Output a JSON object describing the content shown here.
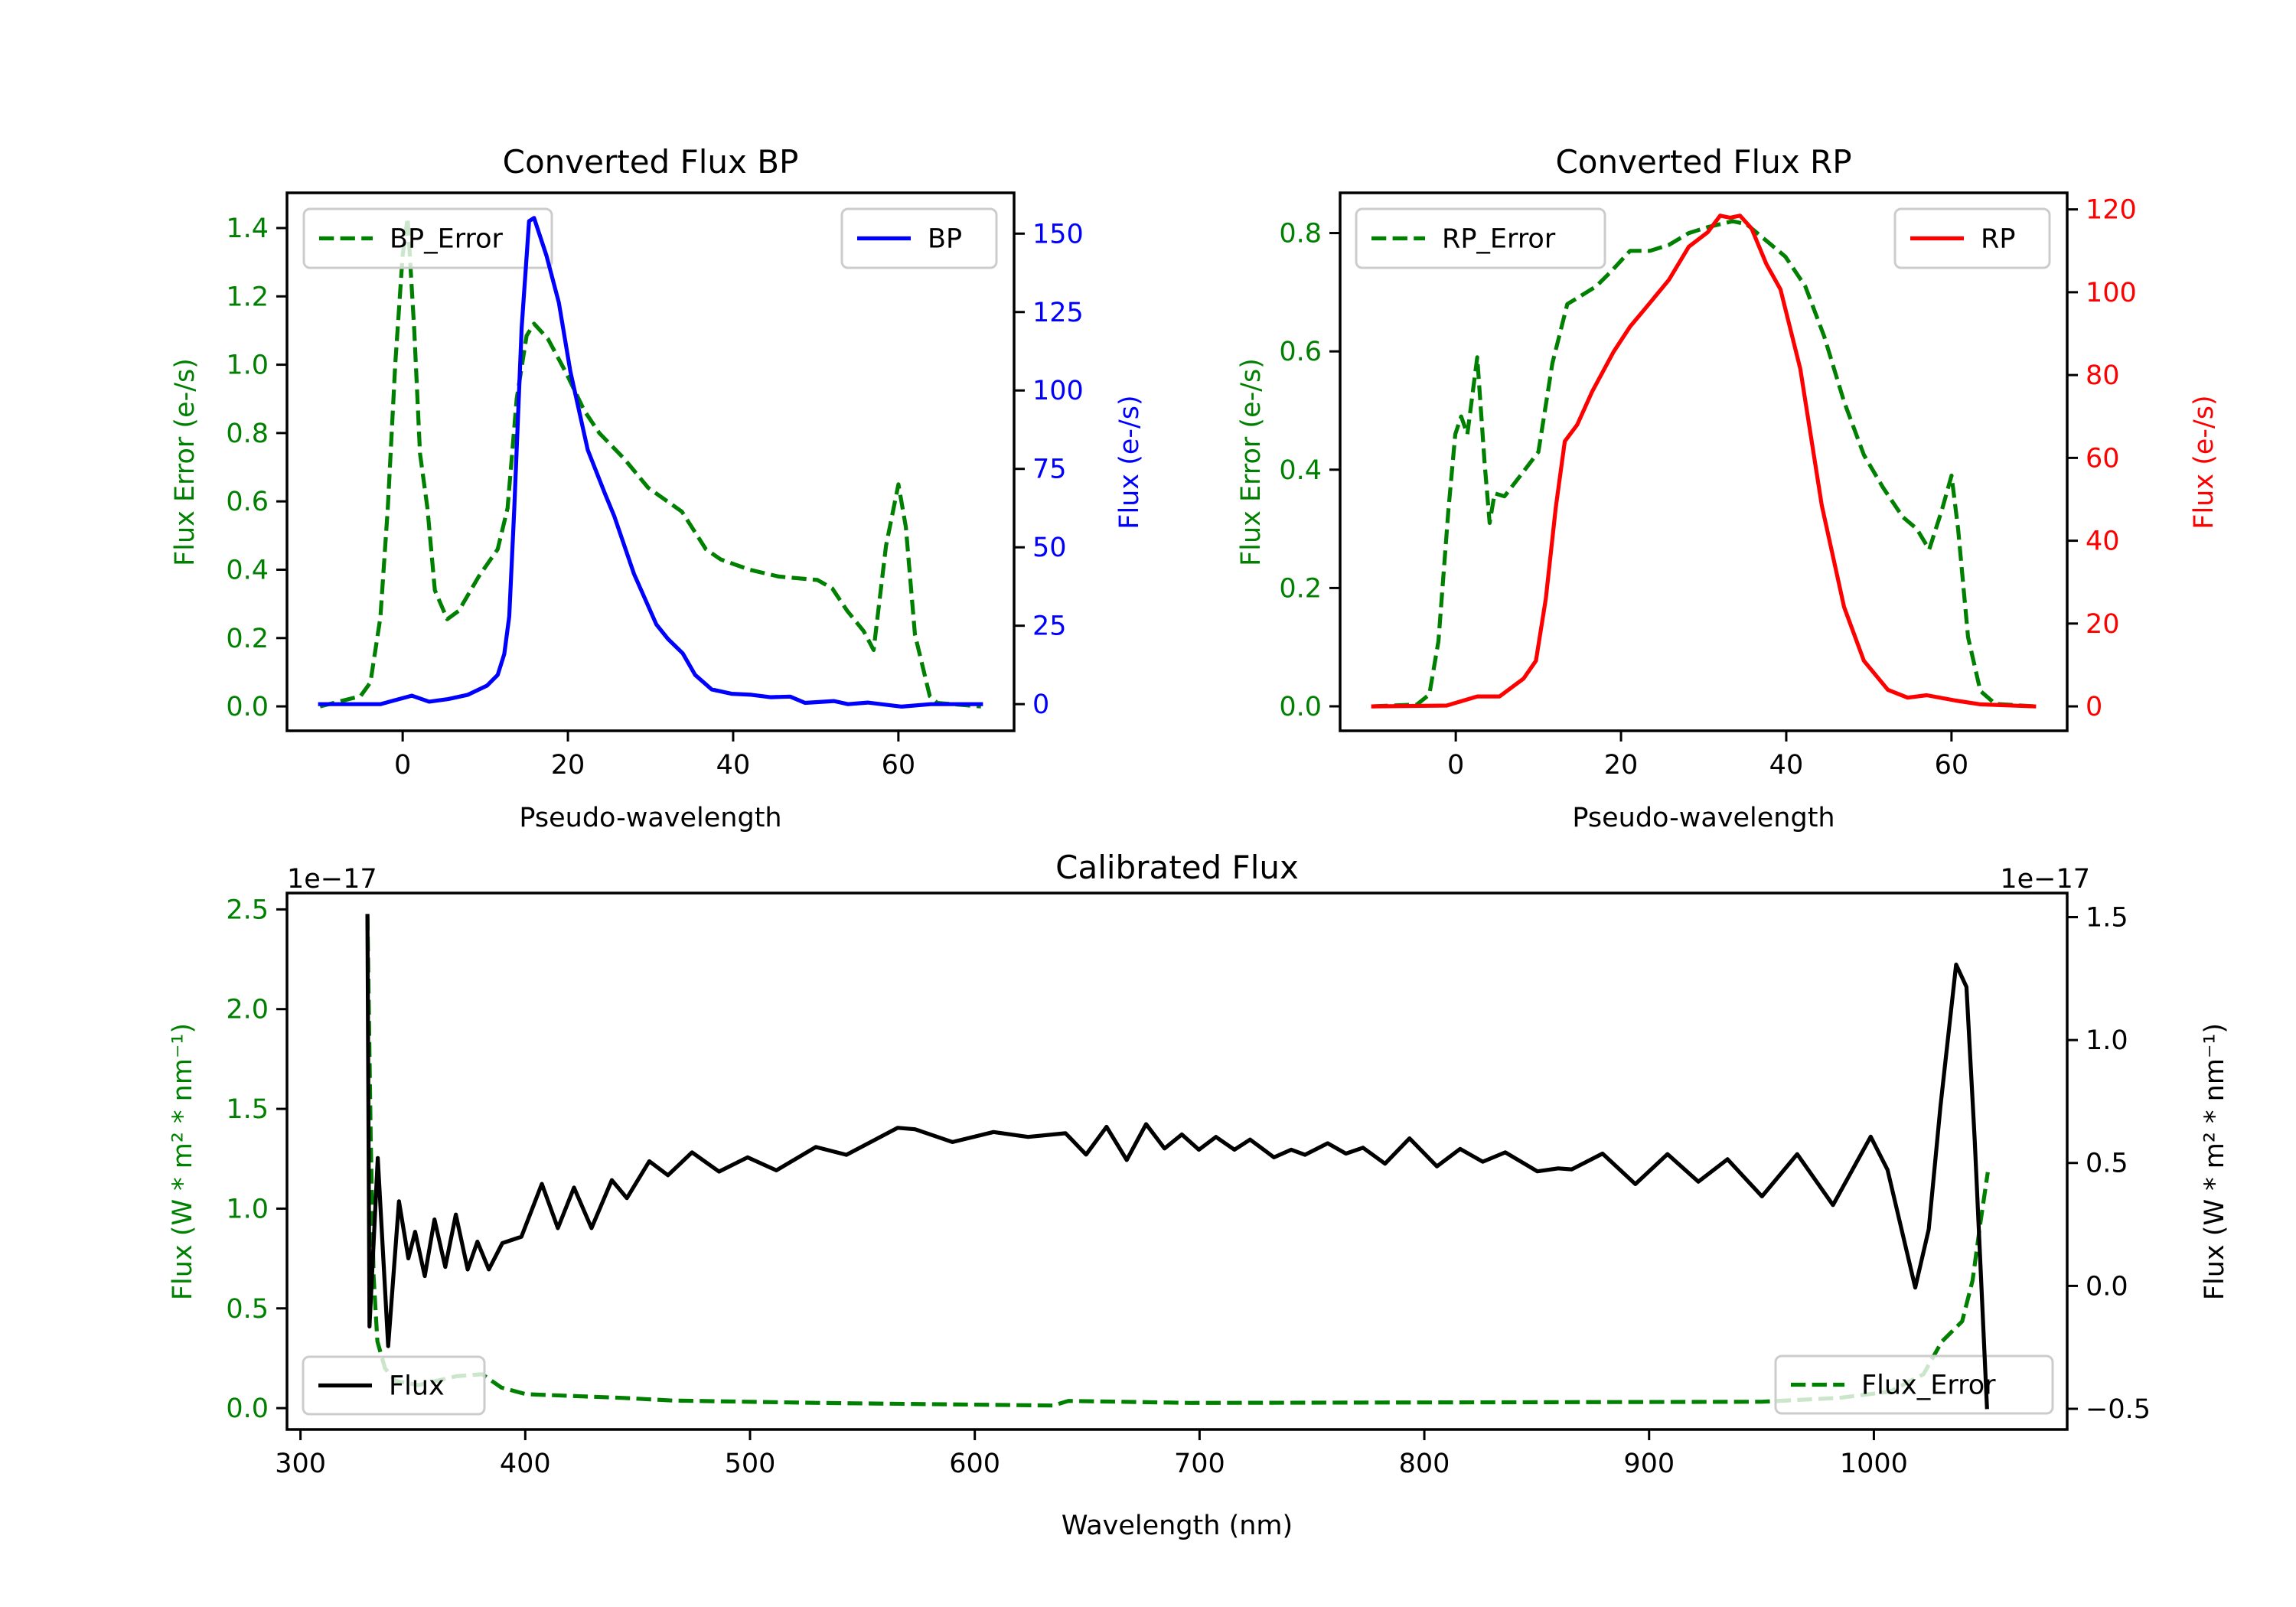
{
  "colors": {
    "error": "#008000",
    "bp": "#0000ff",
    "rp": "#ff0000",
    "flux": "#000000",
    "axes": "#000000",
    "legend_border": "#cccccc"
  },
  "chart_data": [
    {
      "id": "bp",
      "type": "line",
      "title": "Converted Flux BP",
      "xlabel": "Pseudo-wavelength",
      "ylabel": "Flux Error (e-/s)",
      "ylabel_right": "Flux (e-/s)",
      "xlim": [
        -14,
        74
      ],
      "ylim": [
        -0.0715,
        1.503
      ],
      "ylim_right": [
        -8.5,
        163
      ],
      "grid": false,
      "xticks": [
        0,
        20,
        40,
        60
      ],
      "xtick_labels": [
        "0",
        "20",
        "40",
        "60"
      ],
      "yticks": [
        0.0,
        0.2,
        0.4,
        0.6,
        0.8,
        1.0,
        1.2,
        1.4
      ],
      "ytick_labels": [
        "0.0",
        "0.2",
        "0.4",
        "0.6",
        "0.8",
        "1.0",
        "1.2",
        "1.4"
      ],
      "yticks_right": [
        0,
        25,
        50,
        75,
        100,
        125,
        150
      ],
      "ytick_labels_right": [
        "0",
        "25",
        "50",
        "75",
        "100",
        "125",
        "150"
      ],
      "legend_left": {
        "label": "BP_Error",
        "placement": "upper-left"
      },
      "legend_right": {
        "label": "BP",
        "placement": "upper-right"
      },
      "series": [
        {
          "name": "BP_Error",
          "axis": "left",
          "style": "dashed",
          "color_key": "error",
          "x": [
            -10,
            -5.1,
            -3.9,
            -2.7,
            -1.8,
            -0.9,
            0,
            0.6,
            1.4,
            2.1,
            3.0,
            3.9,
            5.4,
            6.8,
            9.2,
            11.5,
            12.7,
            13.8,
            15.0,
            15.9,
            17.6,
            19.7,
            22.0,
            23.8,
            26.8,
            29.7,
            33.8,
            36.7,
            38.5,
            42.0,
            45.5,
            50.2,
            52.0,
            53.8,
            55.8,
            57.0,
            58.5,
            60.0,
            60.9,
            62.0,
            63.8,
            64.7,
            70
          ],
          "y": [
            0.0,
            0.03,
            0.07,
            0.26,
            0.58,
            1.0,
            1.32,
            1.43,
            1.1,
            0.74,
            0.58,
            0.34,
            0.255,
            0.28,
            0.38,
            0.46,
            0.58,
            0.9,
            1.085,
            1.12,
            1.075,
            0.98,
            0.865,
            0.8,
            0.725,
            0.64,
            0.57,
            0.46,
            0.43,
            0.4,
            0.38,
            0.37,
            0.345,
            0.28,
            0.22,
            0.165,
            0.47,
            0.65,
            0.525,
            0.21,
            0.03,
            0.01,
            0.0
          ]
        },
        {
          "name": "BP",
          "axis": "right",
          "style": "solid",
          "color_key": "bp",
          "x": [
            -10,
            -2.7,
            1.1,
            3.2,
            5.5,
            7.9,
            10.2,
            11.5,
            12.3,
            12.9,
            13.5,
            14.4,
            15.3,
            15.9,
            17.4,
            18.9,
            20.3,
            22.4,
            24.5,
            25.6,
            28.0,
            30.7,
            32.1,
            33.9,
            35.4,
            37.4,
            39.8,
            42.2,
            44.5,
            46.9,
            48.7,
            52.2,
            53.9,
            56.3,
            60.4,
            63.9,
            70
          ],
          "y": [
            0,
            0,
            2.7,
            0.8,
            1.6,
            3.0,
            5.9,
            9.3,
            16,
            28,
            62,
            120,
            154,
            155,
            143,
            128,
            106,
            81,
            67,
            60,
            41.5,
            25.4,
            20.8,
            16.2,
            9.3,
            4.7,
            3.3,
            3.0,
            2.2,
            2.4,
            0.4,
            1.0,
            0,
            0.5,
            -0.8,
            0,
            0
          ]
        }
      ]
    },
    {
      "id": "rp",
      "type": "line",
      "title": "Converted Flux RP",
      "xlabel": "Pseudo-wavelength",
      "ylabel": "Flux Error (e-/s)",
      "ylabel_right": "Flux (e-/s)",
      "xlim": [
        -14,
        74
      ],
      "ylim": [
        -0.0414,
        0.868
      ],
      "ylim_right": [
        -5.9,
        124
      ],
      "grid": false,
      "xticks": [
        0,
        20,
        40,
        60
      ],
      "xtick_labels": [
        "0",
        "20",
        "40",
        "60"
      ],
      "yticks": [
        0.0,
        0.2,
        0.4,
        0.6,
        0.8
      ],
      "ytick_labels": [
        "0.0",
        "0.2",
        "0.4",
        "0.6",
        "0.8"
      ],
      "yticks_right": [
        0,
        20,
        40,
        60,
        80,
        100,
        120
      ],
      "ytick_labels_right": [
        "0",
        "20",
        "40",
        "60",
        "80",
        "100",
        "120"
      ],
      "legend_left": {
        "label": "RP_Error",
        "placement": "upper-left"
      },
      "legend_right": {
        "label": "RP",
        "placement": "upper-right"
      },
      "series": [
        {
          "name": "RP_Error",
          "axis": "left",
          "style": "dashed",
          "color_key": "error",
          "x": [
            -10,
            -4.7,
            -3.2,
            -2.1,
            -0.9,
            -0.06,
            0.65,
            1.4,
            2.6,
            3.5,
            4.1,
            4.7,
            5.9,
            8.2,
            10.0,
            11.7,
            13.5,
            14.7,
            17.0,
            18.8,
            21.1,
            23.5,
            25.8,
            28.2,
            30.5,
            33.5,
            35.2,
            38.2,
            39.9,
            42.3,
            44.6,
            47.0,
            49.4,
            51.7,
            54.1,
            55.8,
            57.3,
            58.8,
            60.0,
            60.8,
            62.0,
            63.5,
            65.3,
            70
          ],
          "y": [
            0.0,
            0.003,
            0.02,
            0.11,
            0.33,
            0.46,
            0.49,
            0.46,
            0.59,
            0.41,
            0.31,
            0.36,
            0.355,
            0.397,
            0.43,
            0.58,
            0.68,
            0.69,
            0.71,
            0.735,
            0.77,
            0.77,
            0.78,
            0.8,
            0.81,
            0.82,
            0.815,
            0.78,
            0.76,
            0.71,
            0.625,
            0.515,
            0.425,
            0.37,
            0.32,
            0.3,
            0.265,
            0.33,
            0.39,
            0.3,
            0.117,
            0.026,
            0.004,
            0.0
          ]
        },
        {
          "name": "RP",
          "axis": "right",
          "style": "solid",
          "color_key": "rp",
          "x": [
            -10,
            -1.1,
            2.6,
            5.3,
            8.2,
            9.7,
            10.9,
            12.1,
            13.2,
            14.7,
            16.5,
            19.1,
            21.1,
            22.9,
            25.8,
            28.2,
            30.5,
            32.0,
            33.2,
            34.4,
            35.8,
            37.6,
            39.3,
            41.7,
            44.3,
            47.0,
            49.4,
            52.3,
            54.7,
            57.0,
            60.5,
            63.5,
            70
          ],
          "y": [
            0,
            0.2,
            2.4,
            2.4,
            6.7,
            11,
            26,
            48,
            64,
            68,
            76,
            85.6,
            91.7,
            96,
            103,
            111,
            114.5,
            118.5,
            118,
            118.5,
            115.4,
            106.8,
            100.7,
            81.5,
            48.5,
            24,
            11,
            4,
            2.1,
            2.7,
            1.4,
            0.5,
            0
          ]
        }
      ]
    },
    {
      "id": "calibrated",
      "type": "line",
      "title": "Calibrated Flux",
      "xlabel": "Wavelength (nm)",
      "ylabel": "Flux (W * m² * nm⁻¹)",
      "ylabel_right": "Flux (W * m² * nm⁻¹)",
      "offset_left": "1e−17",
      "offset_right": "1e−17",
      "xlim": [
        294,
        1086
      ],
      "ylim": [
        -0.107,
        2.582
      ],
      "ylim_right": [
        -0.584,
        1.598
      ],
      "grid": false,
      "xticks": [
        300,
        400,
        500,
        600,
        700,
        800,
        900,
        1000
      ],
      "xtick_labels": [
        "300",
        "400",
        "500",
        "600",
        "700",
        "800",
        "900",
        "1000"
      ],
      "yticks": [
        0.0,
        0.5,
        1.0,
        1.5,
        2.0,
        2.5
      ],
      "ytick_labels": [
        "0.0",
        "0.5",
        "1.0",
        "1.5",
        "2.0",
        "2.5"
      ],
      "yticks_right": [
        -0.5,
        0.0,
        0.5,
        1.0,
        1.5
      ],
      "ytick_labels_right": [
        "−0.5",
        "0.0",
        "0.5",
        "1.0",
        "1.5"
      ],
      "legend_left": {
        "label": "Flux_Error",
        "placement": "lower-right"
      },
      "legend_right": {
        "label": "Flux",
        "placement": "lower-left"
      },
      "series": [
        {
          "name": "Flux_Error",
          "axis": "left",
          "style": "dashed",
          "color_key": "error",
          "scale": "1e-17",
          "x": [
            329.8,
            331.3,
            332.5,
            334.2,
            337.6,
            342.1,
            352.4,
            369.4,
            380.8,
            389.4,
            400.3,
            443.7,
            465.5,
            530.6,
            634.9,
            641.6,
            696,
            950,
            984.3,
            1007.2,
            1022.1,
            1030.2,
            1039.3,
            1043.9,
            1047.3,
            1050.7
          ],
          "y": [
            2.47,
            1.33,
            0.665,
            0.335,
            0.2,
            0.137,
            0.115,
            0.16,
            0.17,
            0.103,
            0.07,
            0.051,
            0.038,
            0.026,
            0.013,
            0.036,
            0.026,
            0.032,
            0.051,
            0.083,
            0.17,
            0.333,
            0.435,
            0.64,
            0.92,
            1.183
          ]
        },
        {
          "name": "Flux",
          "axis": "right",
          "style": "solid",
          "color_key": "flux",
          "scale": "1e-17",
          "x": [
            329.8,
            330.7,
            334.4,
            339.0,
            343.8,
            348.0,
            351.0,
            355.3,
            359.6,
            364.4,
            369.1,
            374.4,
            378.7,
            383.8,
            389.8,
            398.3,
            407.4,
            414.5,
            421.7,
            429.5,
            438.5,
            445.2,
            455.2,
            463.5,
            474.2,
            486.2,
            498.9,
            511.7,
            529.3,
            542.9,
            565.7,
            573.4,
            590.1,
            608.3,
            623.7,
            640.4,
            649.5,
            658.6,
            667.6,
            676.2,
            684.4,
            692.1,
            699.7,
            707.3,
            715.5,
            722.5,
            733.1,
            740.8,
            746.9,
            757.0,
            765.1,
            772.7,
            782.5,
            793.4,
            805.6,
            815.9,
            826.0,
            836.0,
            850.3,
            859.5,
            865.6,
            879.3,
            893.9,
            908.2,
            921.9,
            934.9,
            950.2,
            965.9,
            981.8,
            998.6,
            1006.1,
            1018.4,
            1024.4,
            1029.6,
            1036.6,
            1041.2,
            1044.9,
            1050.3
          ],
          "y": [
            1.505,
            -0.165,
            0.52,
            -0.245,
            0.344,
            0.112,
            0.22,
            0.04,
            0.27,
            0.077,
            0.29,
            0.067,
            0.18,
            0.067,
            0.174,
            0.2,
            0.415,
            0.235,
            0.4,
            0.235,
            0.43,
            0.357,
            0.507,
            0.45,
            0.543,
            0.465,
            0.523,
            0.47,
            0.565,
            0.533,
            0.643,
            0.637,
            0.585,
            0.626,
            0.606,
            0.621,
            0.534,
            0.647,
            0.512,
            0.658,
            0.559,
            0.616,
            0.554,
            0.606,
            0.554,
            0.595,
            0.523,
            0.554,
            0.533,
            0.58,
            0.538,
            0.562,
            0.497,
            0.6,
            0.486,
            0.557,
            0.505,
            0.543,
            0.466,
            0.478,
            0.474,
            0.538,
            0.414,
            0.536,
            0.424,
            0.515,
            0.364,
            0.536,
            0.329,
            0.607,
            0.472,
            -0.007,
            0.23,
            0.729,
            1.307,
            1.216,
            0.587,
            -0.493
          ]
        }
      ]
    }
  ]
}
